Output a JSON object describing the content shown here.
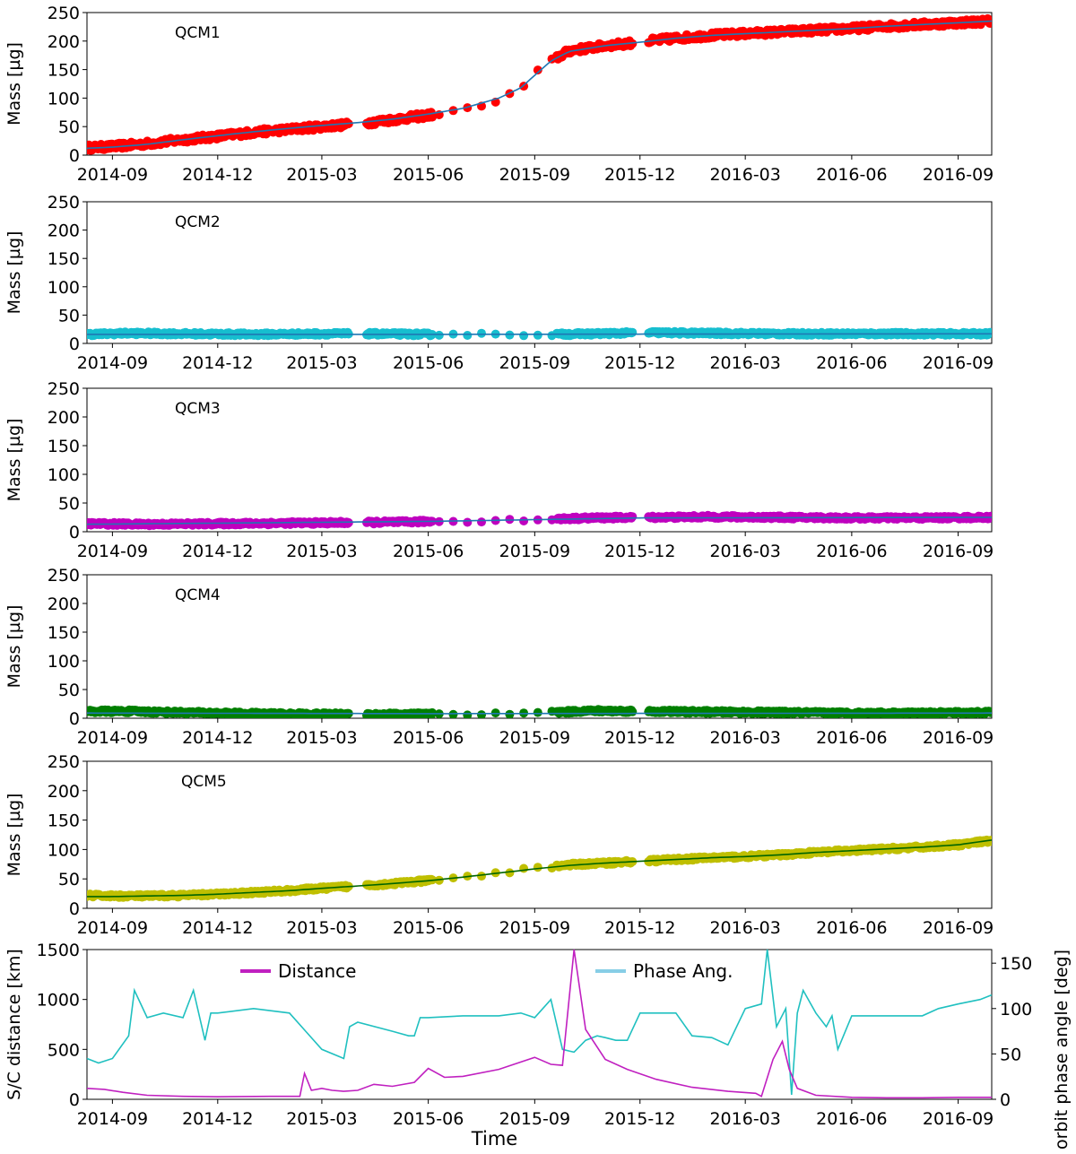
{
  "colors": {
    "qcm1": "#ff0000",
    "qcm2": "#17becf",
    "qcm3": "#bf00bf",
    "qcm4": "#007f00",
    "qcm5": "#bfbf00",
    "fit": "#1f77b4",
    "fit_qcm5": "#006400",
    "distance": "#c020c0",
    "phase": "#20c0c0",
    "phase_legend": "#87cee6"
  },
  "chart_data": [
    {
      "type": "scatter",
      "annotation": "QCM1",
      "ylabel": "Mass [µg]",
      "ylim": [
        0,
        250
      ],
      "yticks": [
        "0",
        "50",
        "100",
        "150",
        "200",
        "250"
      ],
      "xticks": [
        "2014-09",
        "2014-12",
        "2015-03",
        "2015-06",
        "2015-09",
        "2015-12",
        "2016-03",
        "2016-06",
        "2016-09"
      ],
      "series": [
        {
          "x": [
            "2014-08-10",
            "2014-09-01",
            "2014-10-01",
            "2014-11-01",
            "2014-12-01",
            "2015-01-01",
            "2015-02-01",
            "2015-03-01",
            "2015-04-01",
            "2015-05-01",
            "2015-06-01",
            "2015-07-01",
            "2015-08-01",
            "2015-08-20",
            "2015-09-01",
            "2015-09-15",
            "2015-10-01",
            "2015-11-01",
            "2015-12-01",
            "2016-01-01",
            "2016-02-01",
            "2016-03-01",
            "2016-04-01",
            "2016-05-01",
            "2016-06-01",
            "2016-07-01",
            "2016-08-01",
            "2016-09-01",
            "2016-09-30"
          ],
          "y": [
            13,
            15,
            20,
            27,
            33,
            40,
            45,
            50,
            55,
            62,
            70,
            78,
            95,
            115,
            140,
            165,
            183,
            192,
            198,
            205,
            210,
            213,
            216,
            219,
            222,
            226,
            229,
            232,
            235
          ]
        }
      ],
      "fit": {
        "x": [
          "2014-08-10",
          "2014-09-01",
          "2014-10-01",
          "2014-11-01",
          "2014-12-01",
          "2015-01-01",
          "2015-02-01",
          "2015-03-01",
          "2015-04-01",
          "2015-05-01",
          "2015-06-01",
          "2015-07-01",
          "2015-08-01",
          "2015-08-20",
          "2015-09-01",
          "2015-09-15",
          "2015-10-01",
          "2015-11-01",
          "2015-12-01",
          "2016-01-01",
          "2016-02-01",
          "2016-03-01",
          "2016-04-01",
          "2016-05-01",
          "2016-06-01",
          "2016-07-01",
          "2016-08-01",
          "2016-09-01",
          "2016-09-30"
        ],
        "y": [
          12,
          14,
          19,
          27,
          34,
          41,
          47,
          52,
          57,
          63,
          72,
          82,
          100,
          118,
          140,
          165,
          182,
          192,
          198,
          205,
          210,
          213,
          216,
          219,
          222,
          226,
          229,
          232,
          235
        ]
      }
    },
    {
      "type": "scatter",
      "annotation": "QCM2",
      "ylabel": "Mass [µg]",
      "ylim": [
        0,
        250
      ],
      "yticks": [
        "0",
        "50",
        "100",
        "150",
        "200",
        "250"
      ],
      "xticks": [
        "2014-09",
        "2014-12",
        "2015-03",
        "2015-06",
        "2015-09",
        "2015-12",
        "2016-03",
        "2016-06",
        "2016-09"
      ],
      "series": [
        {
          "x": [
            "2014-08-10",
            "2014-09-15",
            "2014-11-01",
            "2015-01-01",
            "2015-03-01",
            "2015-04-15",
            "2015-06-01",
            "2015-07-15",
            "2015-08-15",
            "2015-09-15",
            "2015-10-20",
            "2015-12-10",
            "2016-02-01",
            "2016-04-01",
            "2016-06-01",
            "2016-08-01",
            "2016-09-30"
          ],
          "y": [
            16,
            18,
            17,
            16,
            17,
            17,
            16,
            16,
            16,
            16,
            17,
            19,
            18,
            17,
            17,
            17,
            17
          ]
        }
      ],
      "fit": {
        "x": [
          "2014-08-10",
          "2015-06-01",
          "2016-09-30"
        ],
        "y": [
          16,
          16,
          17
        ]
      }
    },
    {
      "type": "scatter",
      "annotation": "QCM3",
      "ylabel": "Mass [µg]",
      "ylim": [
        0,
        250
      ],
      "yticks": [
        "0",
        "50",
        "100",
        "150",
        "200",
        "250"
      ],
      "xticks": [
        "2014-09",
        "2014-12",
        "2015-03",
        "2015-06",
        "2015-09",
        "2015-12",
        "2016-03",
        "2016-06",
        "2016-09"
      ],
      "series": [
        {
          "x": [
            "2014-08-10",
            "2014-10-01",
            "2014-12-01",
            "2015-02-01",
            "2015-04-01",
            "2015-05-15",
            "2015-06-01",
            "2015-07-15",
            "2015-08-15",
            "2015-09-15",
            "2015-10-20",
            "2015-12-10",
            "2016-02-01",
            "2016-04-01",
            "2016-06-01",
            "2016-08-01",
            "2016-09-30"
          ],
          "y": [
            14,
            13,
            14,
            15,
            16,
            17,
            18,
            19,
            20,
            22,
            24,
            25,
            26,
            25,
            24,
            24,
            25
          ]
        }
      ],
      "fit": {
        "x": [
          "2014-08-10",
          "2015-06-01",
          "2015-12-01",
          "2016-09-30"
        ],
        "y": [
          13,
          18,
          24,
          25
        ]
      }
    },
    {
      "type": "scatter",
      "annotation": "QCM4",
      "ylabel": "Mass [µg]",
      "ylim": [
        0,
        250
      ],
      "yticks": [
        "0",
        "50",
        "100",
        "150",
        "200",
        "250"
      ],
      "xticks": [
        "2014-09",
        "2014-12",
        "2015-03",
        "2015-06",
        "2015-09",
        "2015-12",
        "2016-03",
        "2016-06",
        "2016-09"
      ],
      "series": [
        {
          "x": [
            "2014-08-10",
            "2014-09-15",
            "2014-11-01",
            "2015-01-01",
            "2015-03-01",
            "2015-04-15",
            "2015-06-01",
            "2015-07-15",
            "2015-08-15",
            "2015-09-15",
            "2015-10-20",
            "2015-12-10",
            "2016-02-01",
            "2016-04-01",
            "2016-06-01",
            "2016-08-01",
            "2016-09-30"
          ],
          "y": [
            12,
            12,
            10,
            8,
            7,
            7,
            7,
            8,
            9,
            10,
            13,
            12,
            11,
            10,
            9,
            9,
            10
          ]
        }
      ],
      "fit": {
        "x": [
          "2014-08-10",
          "2015-06-01",
          "2016-09-30"
        ],
        "y": [
          9,
          8,
          9
        ]
      }
    },
    {
      "type": "scatter",
      "annotation": "QCM5",
      "ylabel": "Mass [µg]",
      "ylim": [
        0,
        250
      ],
      "yticks": [
        "0",
        "50",
        "100",
        "150",
        "200",
        "250"
      ],
      "xticks": [
        "2014-09",
        "2014-12",
        "2015-03",
        "2015-06",
        "2015-09",
        "2015-12",
        "2016-03",
        "2016-06",
        "2016-09"
      ],
      "series": [
        {
          "x": [
            "2014-08-10",
            "2014-09-01",
            "2014-10-01",
            "2014-11-01",
            "2014-12-01",
            "2015-01-01",
            "2015-02-01",
            "2015-03-01",
            "2015-04-01",
            "2015-05-01",
            "2015-06-01",
            "2015-07-01",
            "2015-08-01",
            "2015-09-01",
            "2015-10-01",
            "2015-11-01",
            "2015-12-01",
            "2016-01-01",
            "2016-02-01",
            "2016-03-01",
            "2016-04-01",
            "2016-05-01",
            "2016-06-01",
            "2016-07-01",
            "2016-08-01",
            "2016-09-01",
            "2016-09-30"
          ],
          "y": [
            22,
            21,
            21,
            22,
            24,
            27,
            30,
            34,
            38,
            42,
            47,
            53,
            60,
            68,
            74,
            77,
            80,
            83,
            86,
            88,
            91,
            95,
            98,
            101,
            104,
            108,
            115
          ]
        }
      ],
      "fit": {
        "x": [
          "2014-08-10",
          "2014-09-01",
          "2014-10-01",
          "2014-11-01",
          "2014-12-01",
          "2015-01-01",
          "2015-02-01",
          "2015-03-01",
          "2015-04-01",
          "2015-05-01",
          "2015-06-01",
          "2015-07-01",
          "2015-08-01",
          "2015-09-01",
          "2015-10-01",
          "2015-11-01",
          "2015-12-01",
          "2016-01-01",
          "2016-02-01",
          "2016-03-01",
          "2016-04-01",
          "2016-05-01",
          "2016-06-01",
          "2016-07-01",
          "2016-08-01",
          "2016-09-01",
          "2016-09-30"
        ],
        "y": [
          20,
          20,
          21,
          22,
          24,
          27,
          30,
          34,
          38,
          42,
          47,
          53,
          60,
          67,
          73,
          77,
          80,
          83,
          86,
          88,
          91,
          95,
          98,
          101,
          104,
          108,
          116
        ]
      }
    },
    {
      "type": "line",
      "xlabel": "Time",
      "ylabel": "S/C distance [km]",
      "ylabel_right": "orbit phase angle [deg]",
      "ylim": [
        0,
        1500
      ],
      "ylim_right": [
        0,
        165
      ],
      "yticks": [
        "0",
        "500",
        "1000",
        "1500"
      ],
      "yticks_right": [
        "0",
        "50",
        "100",
        "150"
      ],
      "xticks": [
        "2014-09",
        "2014-12",
        "2015-03",
        "2015-06",
        "2015-09",
        "2015-12",
        "2016-03",
        "2016-06",
        "2016-09"
      ],
      "legend": "top",
      "series": [
        {
          "name": "Distance",
          "axis": "left",
          "x": [
            "2014-08-10",
            "2014-08-25",
            "2014-09-10",
            "2014-10-01",
            "2014-11-01",
            "2014-12-01",
            "2015-01-15",
            "2015-02-10",
            "2015-02-14",
            "2015-02-20",
            "2015-03-01",
            "2015-03-10",
            "2015-03-20",
            "2015-04-01",
            "2015-04-15",
            "2015-05-01",
            "2015-05-20",
            "2015-06-01",
            "2015-06-15",
            "2015-07-01",
            "2015-08-01",
            "2015-09-01",
            "2015-09-15",
            "2015-09-25",
            "2015-10-05",
            "2015-10-15",
            "2015-11-01",
            "2015-11-20",
            "2015-12-15",
            "2016-01-15",
            "2016-02-15",
            "2016-03-10",
            "2016-03-15",
            "2016-03-25",
            "2016-04-02",
            "2016-04-08",
            "2016-04-15",
            "2016-05-01",
            "2016-06-01",
            "2016-07-01",
            "2016-08-01",
            "2016-09-01",
            "2016-09-30"
          ],
          "y": [
            110,
            100,
            70,
            40,
            30,
            25,
            30,
            30,
            260,
            90,
            110,
            90,
            80,
            90,
            150,
            130,
            170,
            310,
            220,
            230,
            300,
            420,
            350,
            340,
            1500,
            700,
            400,
            300,
            200,
            120,
            80,
            60,
            30,
            400,
            580,
            300,
            110,
            40,
            20,
            15,
            15,
            20,
            20
          ]
        },
        {
          "name": "Phase Ang.",
          "axis": "right",
          "x": [
            "2014-08-10",
            "2014-08-20",
            "2014-09-01",
            "2014-09-15",
            "2014-09-20",
            "2014-10-01",
            "2014-10-15",
            "2014-11-01",
            "2014-11-10",
            "2014-11-20",
            "2014-11-25",
            "2014-12-01",
            "2015-01-01",
            "2015-02-01",
            "2015-02-15",
            "2015-03-01",
            "2015-03-20",
            "2015-03-25",
            "2015-04-01",
            "2015-05-01",
            "2015-05-15",
            "2015-05-20",
            "2015-05-25",
            "2015-06-01",
            "2015-07-01",
            "2015-08-01",
            "2015-08-20",
            "2015-09-01",
            "2015-09-15",
            "2015-09-25",
            "2015-10-05",
            "2015-10-15",
            "2015-10-25",
            "2015-11-01",
            "2015-11-10",
            "2015-11-20",
            "2015-12-01",
            "2016-01-01",
            "2016-01-15",
            "2016-02-01",
            "2016-02-15",
            "2016-03-01",
            "2016-03-15",
            "2016-03-20",
            "2016-03-28",
            "2016-04-05",
            "2016-04-10",
            "2016-04-15",
            "2016-04-20",
            "2016-05-01",
            "2016-05-10",
            "2016-05-15",
            "2016-05-20",
            "2016-06-01",
            "2016-06-10",
            "2016-07-01",
            "2016-08-01",
            "2016-08-15",
            "2016-09-01",
            "2016-09-20",
            "2016-09-30"
          ],
          "y": [
            45,
            40,
            45,
            70,
            120,
            90,
            95,
            90,
            120,
            65,
            95,
            95,
            100,
            95,
            75,
            55,
            45,
            80,
            85,
            75,
            70,
            70,
            90,
            90,
            92,
            92,
            95,
            90,
            110,
            55,
            52,
            65,
            70,
            68,
            65,
            65,
            95,
            95,
            70,
            68,
            60,
            100,
            105,
            165,
            80,
            100,
            5,
            95,
            120,
            95,
            80,
            92,
            55,
            92,
            92,
            92,
            92,
            100,
            105,
            110,
            115
          ]
        }
      ]
    }
  ]
}
